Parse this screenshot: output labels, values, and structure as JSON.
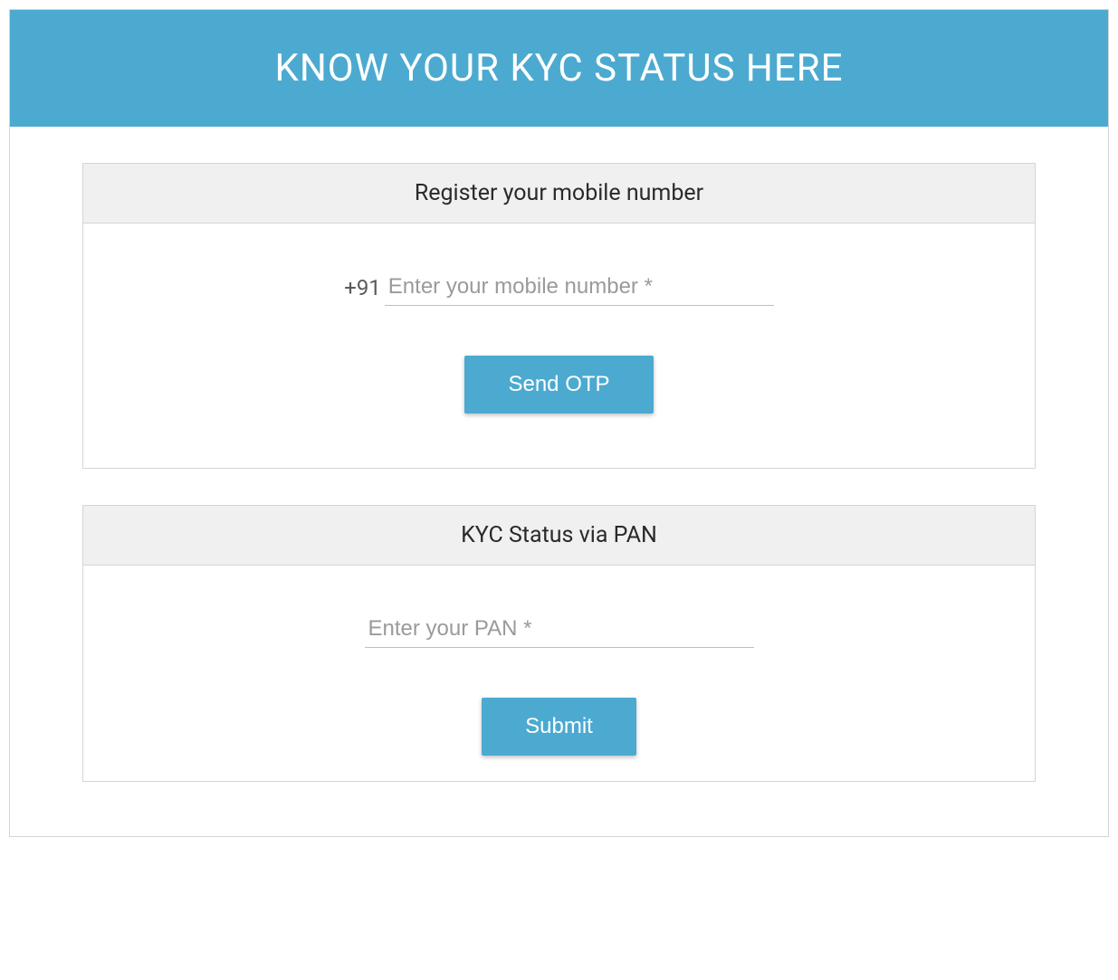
{
  "header": {
    "title": "KNOW YOUR KYC STATUS HERE",
    "background_color": "#4caad0",
    "text_color": "#ffffff"
  },
  "mobile_panel": {
    "title": "Register your mobile number",
    "prefix": "+91",
    "placeholder": "Enter your mobile number *",
    "value": "",
    "button_label": "Send OTP"
  },
  "pan_panel": {
    "title": "KYC Status via PAN",
    "placeholder": "Enter your PAN *",
    "value": "",
    "button_label": "Submit"
  },
  "colors": {
    "accent": "#4caad0",
    "border": "#d5d5d5",
    "panel_header_bg": "#f0f0f0",
    "input_border": "#c0c0c0",
    "placeholder": "#9a9a9a",
    "text_dark": "#2a2a2a"
  },
  "typography": {
    "header_fontsize": 42,
    "panel_title_fontsize": 25,
    "input_fontsize": 24,
    "button_fontsize": 24
  }
}
